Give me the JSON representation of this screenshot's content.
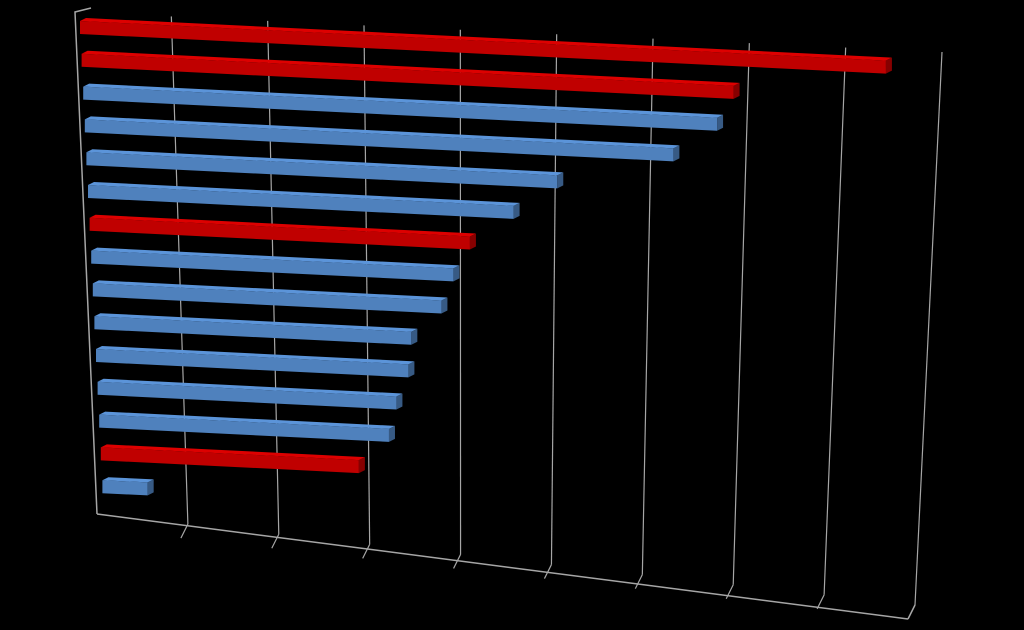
{
  "chart_data": {
    "type": "bar",
    "orientation": "horizontal",
    "perspective": "3d",
    "title": "",
    "xlabel": "",
    "ylabel": "",
    "xlim": [
      0,
      9
    ],
    "grid": true,
    "legend": "none",
    "categories": [
      "",
      "",
      "",
      "",
      "",
      "",
      "",
      "",
      "",
      "",
      "",
      "",
      "",
      "",
      ""
    ],
    "values": [
      8.9,
      7.2,
      7.0,
      6.5,
      5.2,
      4.7,
      4.2,
      4.0,
      3.85,
      3.5,
      3.45,
      3.3,
      3.2,
      2.85,
      0.5
    ],
    "highlight": [
      true,
      true,
      false,
      false,
      false,
      false,
      true,
      false,
      false,
      false,
      false,
      false,
      false,
      true,
      false
    ]
  },
  "colors": {
    "background": "#000000",
    "axis": "#a6a6a6",
    "gridline": "#a6a6a6",
    "series": "#4f81bd",
    "highlight": "#c00000"
  }
}
